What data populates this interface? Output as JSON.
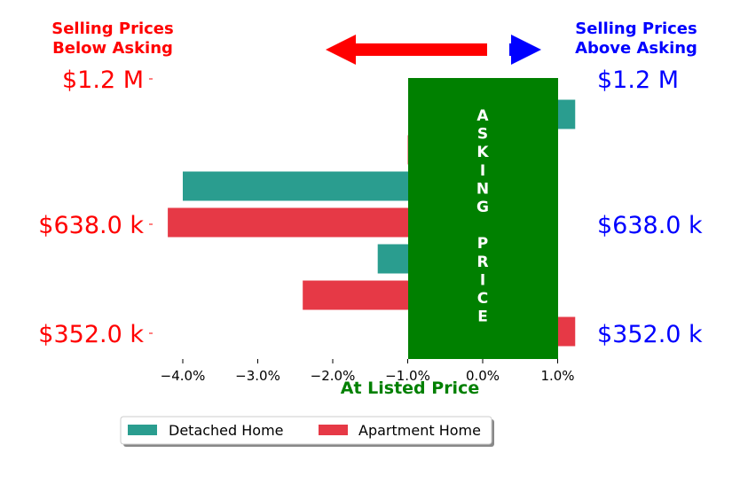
{
  "colors": {
    "detached": "#2a9d8f",
    "apartment": "#e63946",
    "asking_box": "#008000",
    "below": "#ff0000",
    "above": "#0000ff",
    "listed": "#008000"
  },
  "header": {
    "left_line1": "Selling Prices",
    "left_line2": "Below Asking",
    "right_line1": "Selling Prices",
    "right_line2": "Above Asking",
    "arrow_left_icon": "left-arrow-icon",
    "arrow_right_icon": "right-arrow-icon"
  },
  "price_labels": {
    "left": [
      "$1.2 M",
      "$638.0 k",
      "$352.0 k"
    ],
    "right": [
      "$1.2 M",
      "$638.0 k",
      "$352.0 k"
    ]
  },
  "asking_box": {
    "letters": [
      "A",
      "S",
      "K",
      "I",
      "N",
      "G",
      "",
      "P",
      "R",
      "I",
      "C",
      "E"
    ]
  },
  "xaxis_label": "At Listed Price",
  "chart_data": {
    "type": "bar",
    "orientation": "horizontal",
    "categories": [
      "$1.2 M",
      "$638.0 k",
      "$352.0 k"
    ],
    "series": [
      {
        "name": "Detached Home",
        "values": [
          1.2,
          -4.0,
          -1.4
        ]
      },
      {
        "name": "Apartment Home",
        "values": [
          -1.0,
          -4.2,
          -2.4
        ]
      }
    ],
    "extra_bars": [
      {
        "series": "Apartment Home",
        "value": 1.2,
        "group": "$352.0 k"
      }
    ],
    "xticks": [
      "−4.0%",
      "−3.0%",
      "−2.0%",
      "−1.0%",
      "0.0%",
      "1.0%"
    ],
    "xtick_values": [
      -4.0,
      -3.0,
      -2.0,
      -1.0,
      0.0,
      1.0
    ],
    "xlim": [
      -4.4,
      1.2
    ],
    "legend_placement": "bottom-center",
    "grid": false
  }
}
